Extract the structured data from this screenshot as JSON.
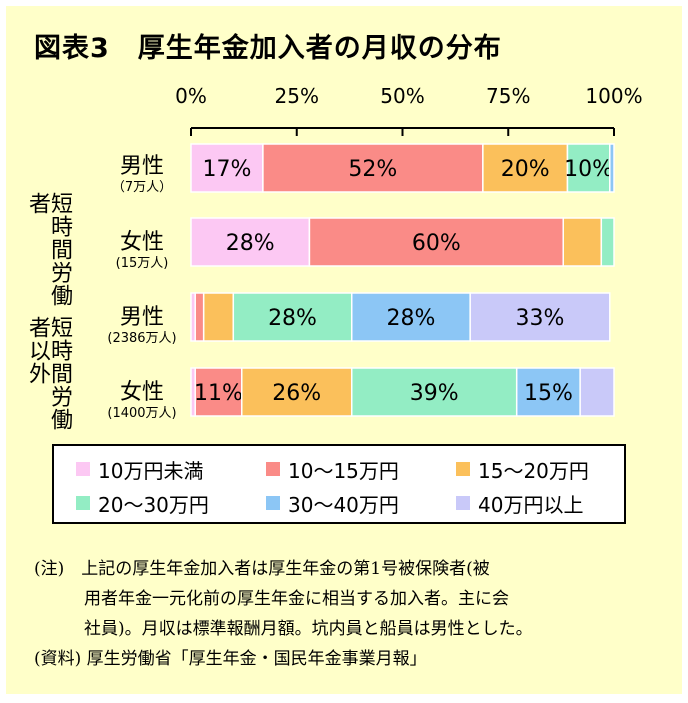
{
  "title": "図表3　厚生年金加入者の月収の分布",
  "groups": [
    {
      "label": "短時間労働者"
    },
    {
      "label": "短時間労働者以外"
    }
  ],
  "legend": [
    {
      "label": "10万円未満",
      "color": "#fcc8f3"
    },
    {
      "label": "10～15万円",
      "color": "#fa8b87"
    },
    {
      "label": "15～20万円",
      "color": "#fbc05b"
    },
    {
      "label": "20～30万円",
      "color": "#93edc4"
    },
    {
      "label": "30～40万円",
      "color": "#8cc6f5"
    },
    {
      "label": "40万円以上",
      "color": "#c9c9f9"
    }
  ],
  "rows": [
    {
      "gender": "男性",
      "count": "（7万人）"
    },
    {
      "gender": "女性",
      "count": "(15万人)"
    },
    {
      "gender": "男性",
      "count": "(2386万人)"
    },
    {
      "gender": "女性",
      "count": "(1400万人)"
    }
  ],
  "notes": [
    "(注)　上記の厚生年金加入者は厚生年金の第1号被保険者(被",
    "用者年金一元化前の厚生年金に相当する加入者。主に会",
    "社員)。月収は標準報酬月額。坑内員と船員は男性とした。",
    "(資料)  厚生労働省「厚生年金・国民年金事業月報」"
  ],
  "chart_data": {
    "type": "bar",
    "orientation": "horizontal",
    "stacked": true,
    "title": "図表3　厚生年金加入者の月収の分布",
    "xlim": [
      0,
      100
    ],
    "x_ticks": [
      "0%",
      "25%",
      "50%",
      "75%",
      "100%"
    ],
    "categories": [
      "男性（7万人）",
      "女性(15万人)",
      "男性(2386万人)",
      "女性(1400万人)"
    ],
    "series": [
      {
        "name": "10万円未満",
        "values": [
          17,
          28,
          1,
          1
        ],
        "labels": [
          "17%",
          "28%",
          "",
          ""
        ]
      },
      {
        "name": "10～15万円",
        "values": [
          52,
          60,
          2,
          11
        ],
        "labels": [
          "52%",
          "60%",
          "",
          "11%"
        ]
      },
      {
        "name": "15～20万円",
        "values": [
          20,
          9,
          7,
          26
        ],
        "labels": [
          "20%",
          "",
          "",
          "26%"
        ]
      },
      {
        "name": "20～30万円",
        "values": [
          10,
          3,
          28,
          39
        ],
        "labels": [
          "10%",
          "",
          "28%",
          "39%"
        ]
      },
      {
        "name": "30～40万円",
        "values": [
          1,
          0,
          28,
          15
        ],
        "labels": [
          "",
          "",
          "28%",
          "15%"
        ]
      },
      {
        "name": "40万円以上",
        "values": [
          0,
          0,
          33,
          8
        ],
        "labels": [
          "",
          "",
          "33%",
          ""
        ]
      }
    ],
    "legend_position": "bottom",
    "grid": false
  }
}
